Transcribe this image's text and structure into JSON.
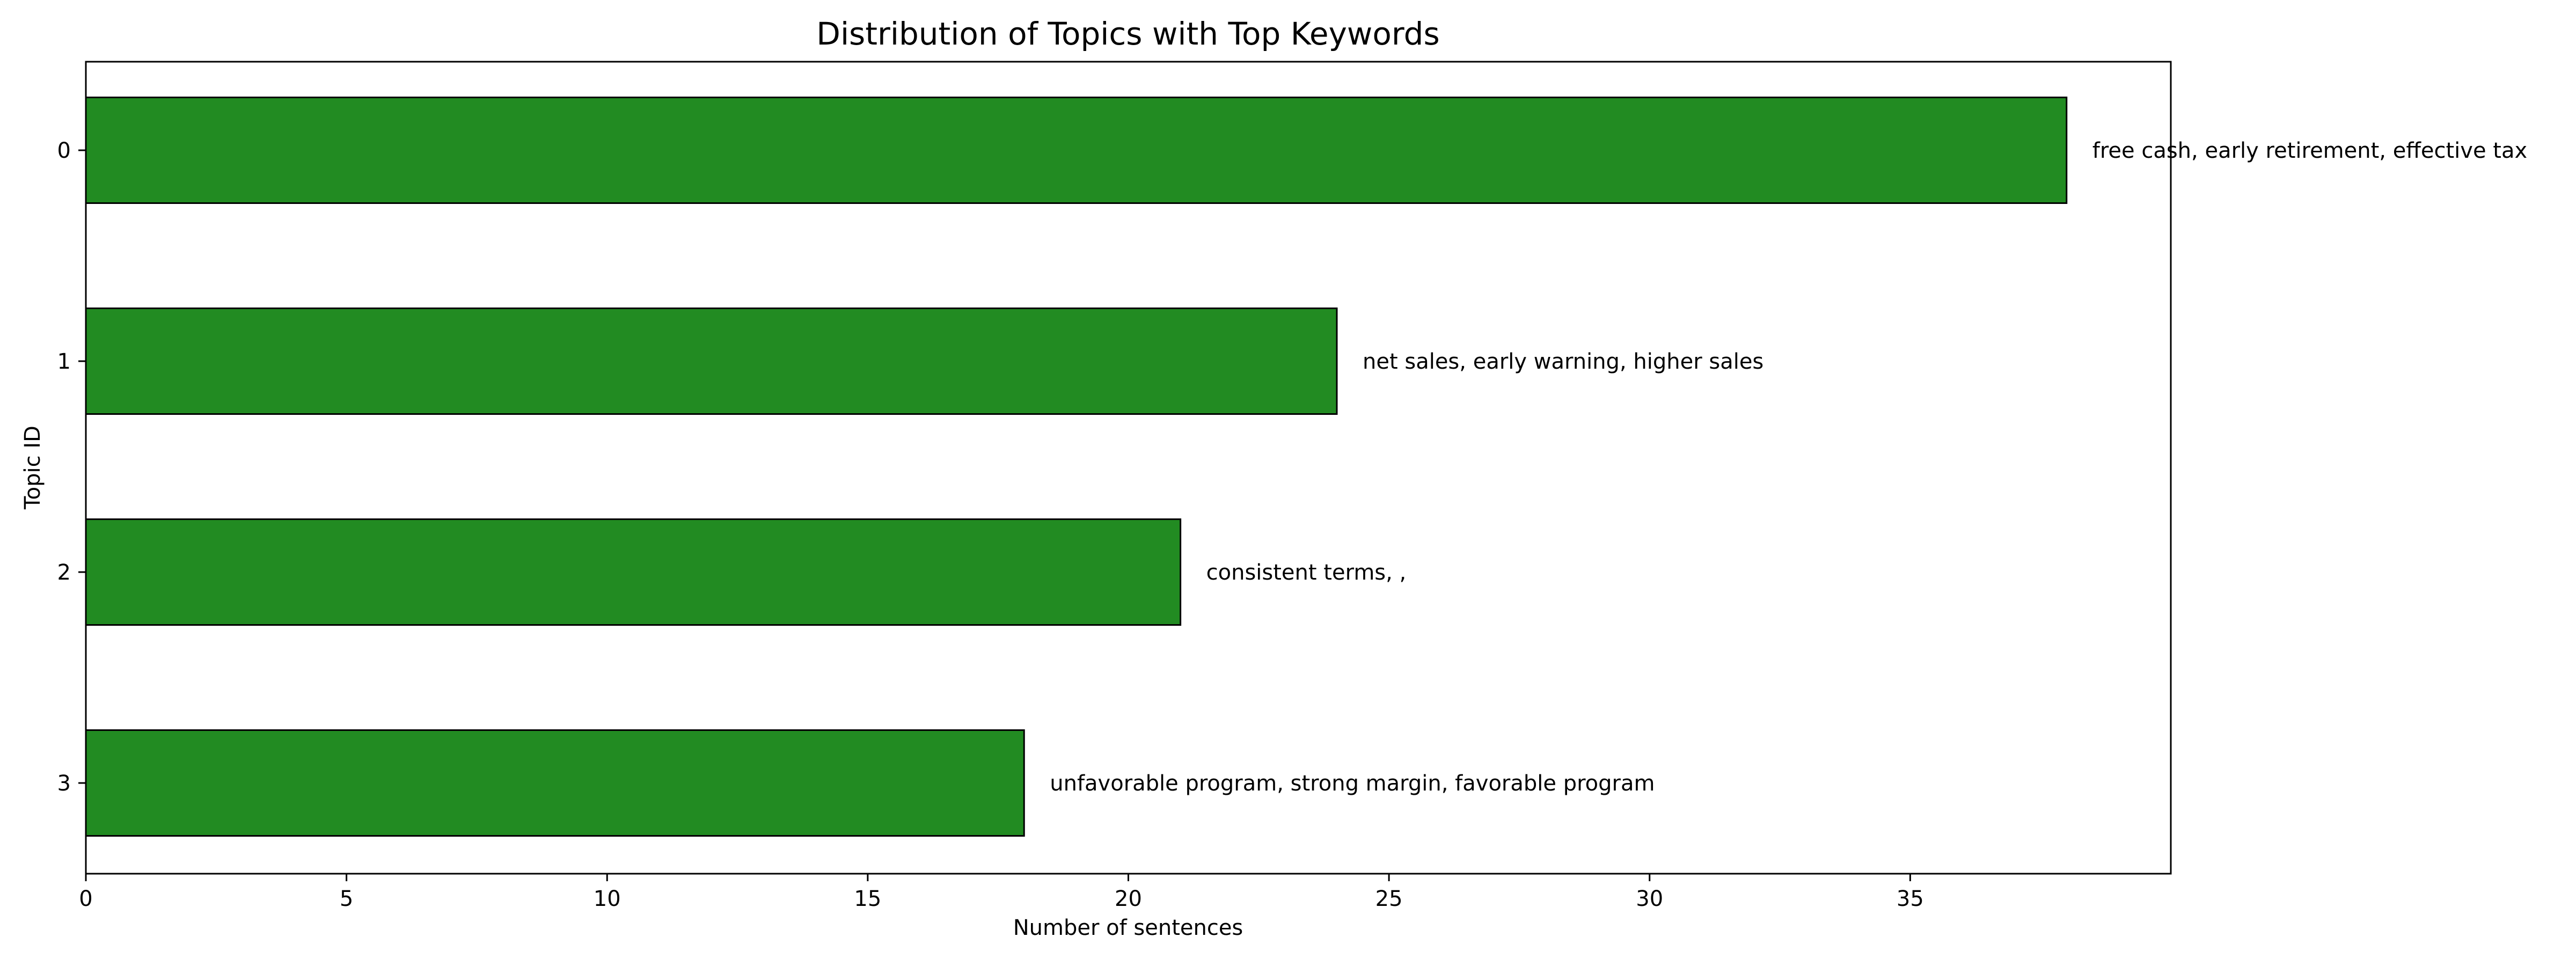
{
  "chart_data": {
    "type": "bar",
    "orientation": "horizontal",
    "title": "Distribution of Topics with Top Keywords",
    "xlabel": "Number of sentences",
    "ylabel": "Topic ID",
    "categories": [
      "0",
      "1",
      "2",
      "3"
    ],
    "values": [
      38,
      24,
      21,
      18
    ],
    "annotations": [
      "free cash, early retirement, effective tax",
      "net sales, early warning, higher sales",
      "consistent terms, ,",
      "unfavorable program, strong margin, favorable program"
    ],
    "xlim": [
      0,
      40
    ],
    "xticks": [
      0,
      5,
      10,
      15,
      20,
      25,
      30,
      35
    ],
    "grid": false,
    "colors": {
      "bar": "#228b22",
      "edge": "#000000"
    }
  }
}
